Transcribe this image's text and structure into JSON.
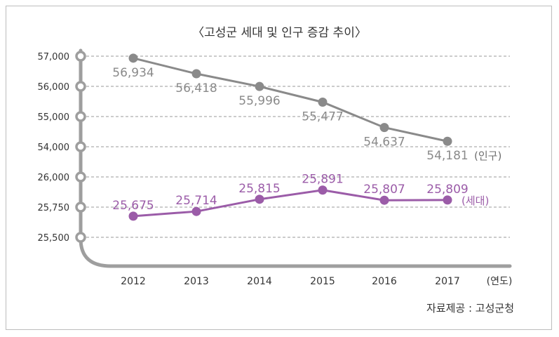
{
  "title": "〈고성군 세대 및 인구 증감 추이〉",
  "source": "자료제공 : 고성군청",
  "colors": {
    "population": "#9e9e9e",
    "households": "#9b5ca8",
    "axis": "#9e9e9e",
    "grid": "#9a9a9a",
    "text": "#333333"
  },
  "chart_data": {
    "type": "line",
    "x_label": "(연도)",
    "categories": [
      "2012",
      "2013",
      "2014",
      "2015",
      "2016",
      "2017"
    ],
    "y_ticks_upper": [
      "57,000",
      "56,000",
      "55,000",
      "54,000"
    ],
    "y_ticks_lower": [
      "26,000",
      "25,750",
      "25,500"
    ],
    "series": [
      {
        "key": "population",
        "name": "(인구)",
        "values": [
          56934,
          56418,
          55996,
          55477,
          54637,
          54181
        ],
        "labels": [
          "56,934",
          "56,418",
          "55,996",
          "55,477",
          "54,637",
          "54,181"
        ],
        "ylim": [
          54000,
          57000
        ]
      },
      {
        "key": "households",
        "name": "(세대)",
        "values": [
          25675,
          25714,
          25815,
          25891,
          25807,
          25809
        ],
        "labels": [
          "25,675",
          "25,714",
          "25,815",
          "25,891",
          "25,807",
          "25,809"
        ],
        "ylim": [
          25500,
          26000
        ]
      }
    ],
    "grid": true,
    "y_axis_break": true
  }
}
